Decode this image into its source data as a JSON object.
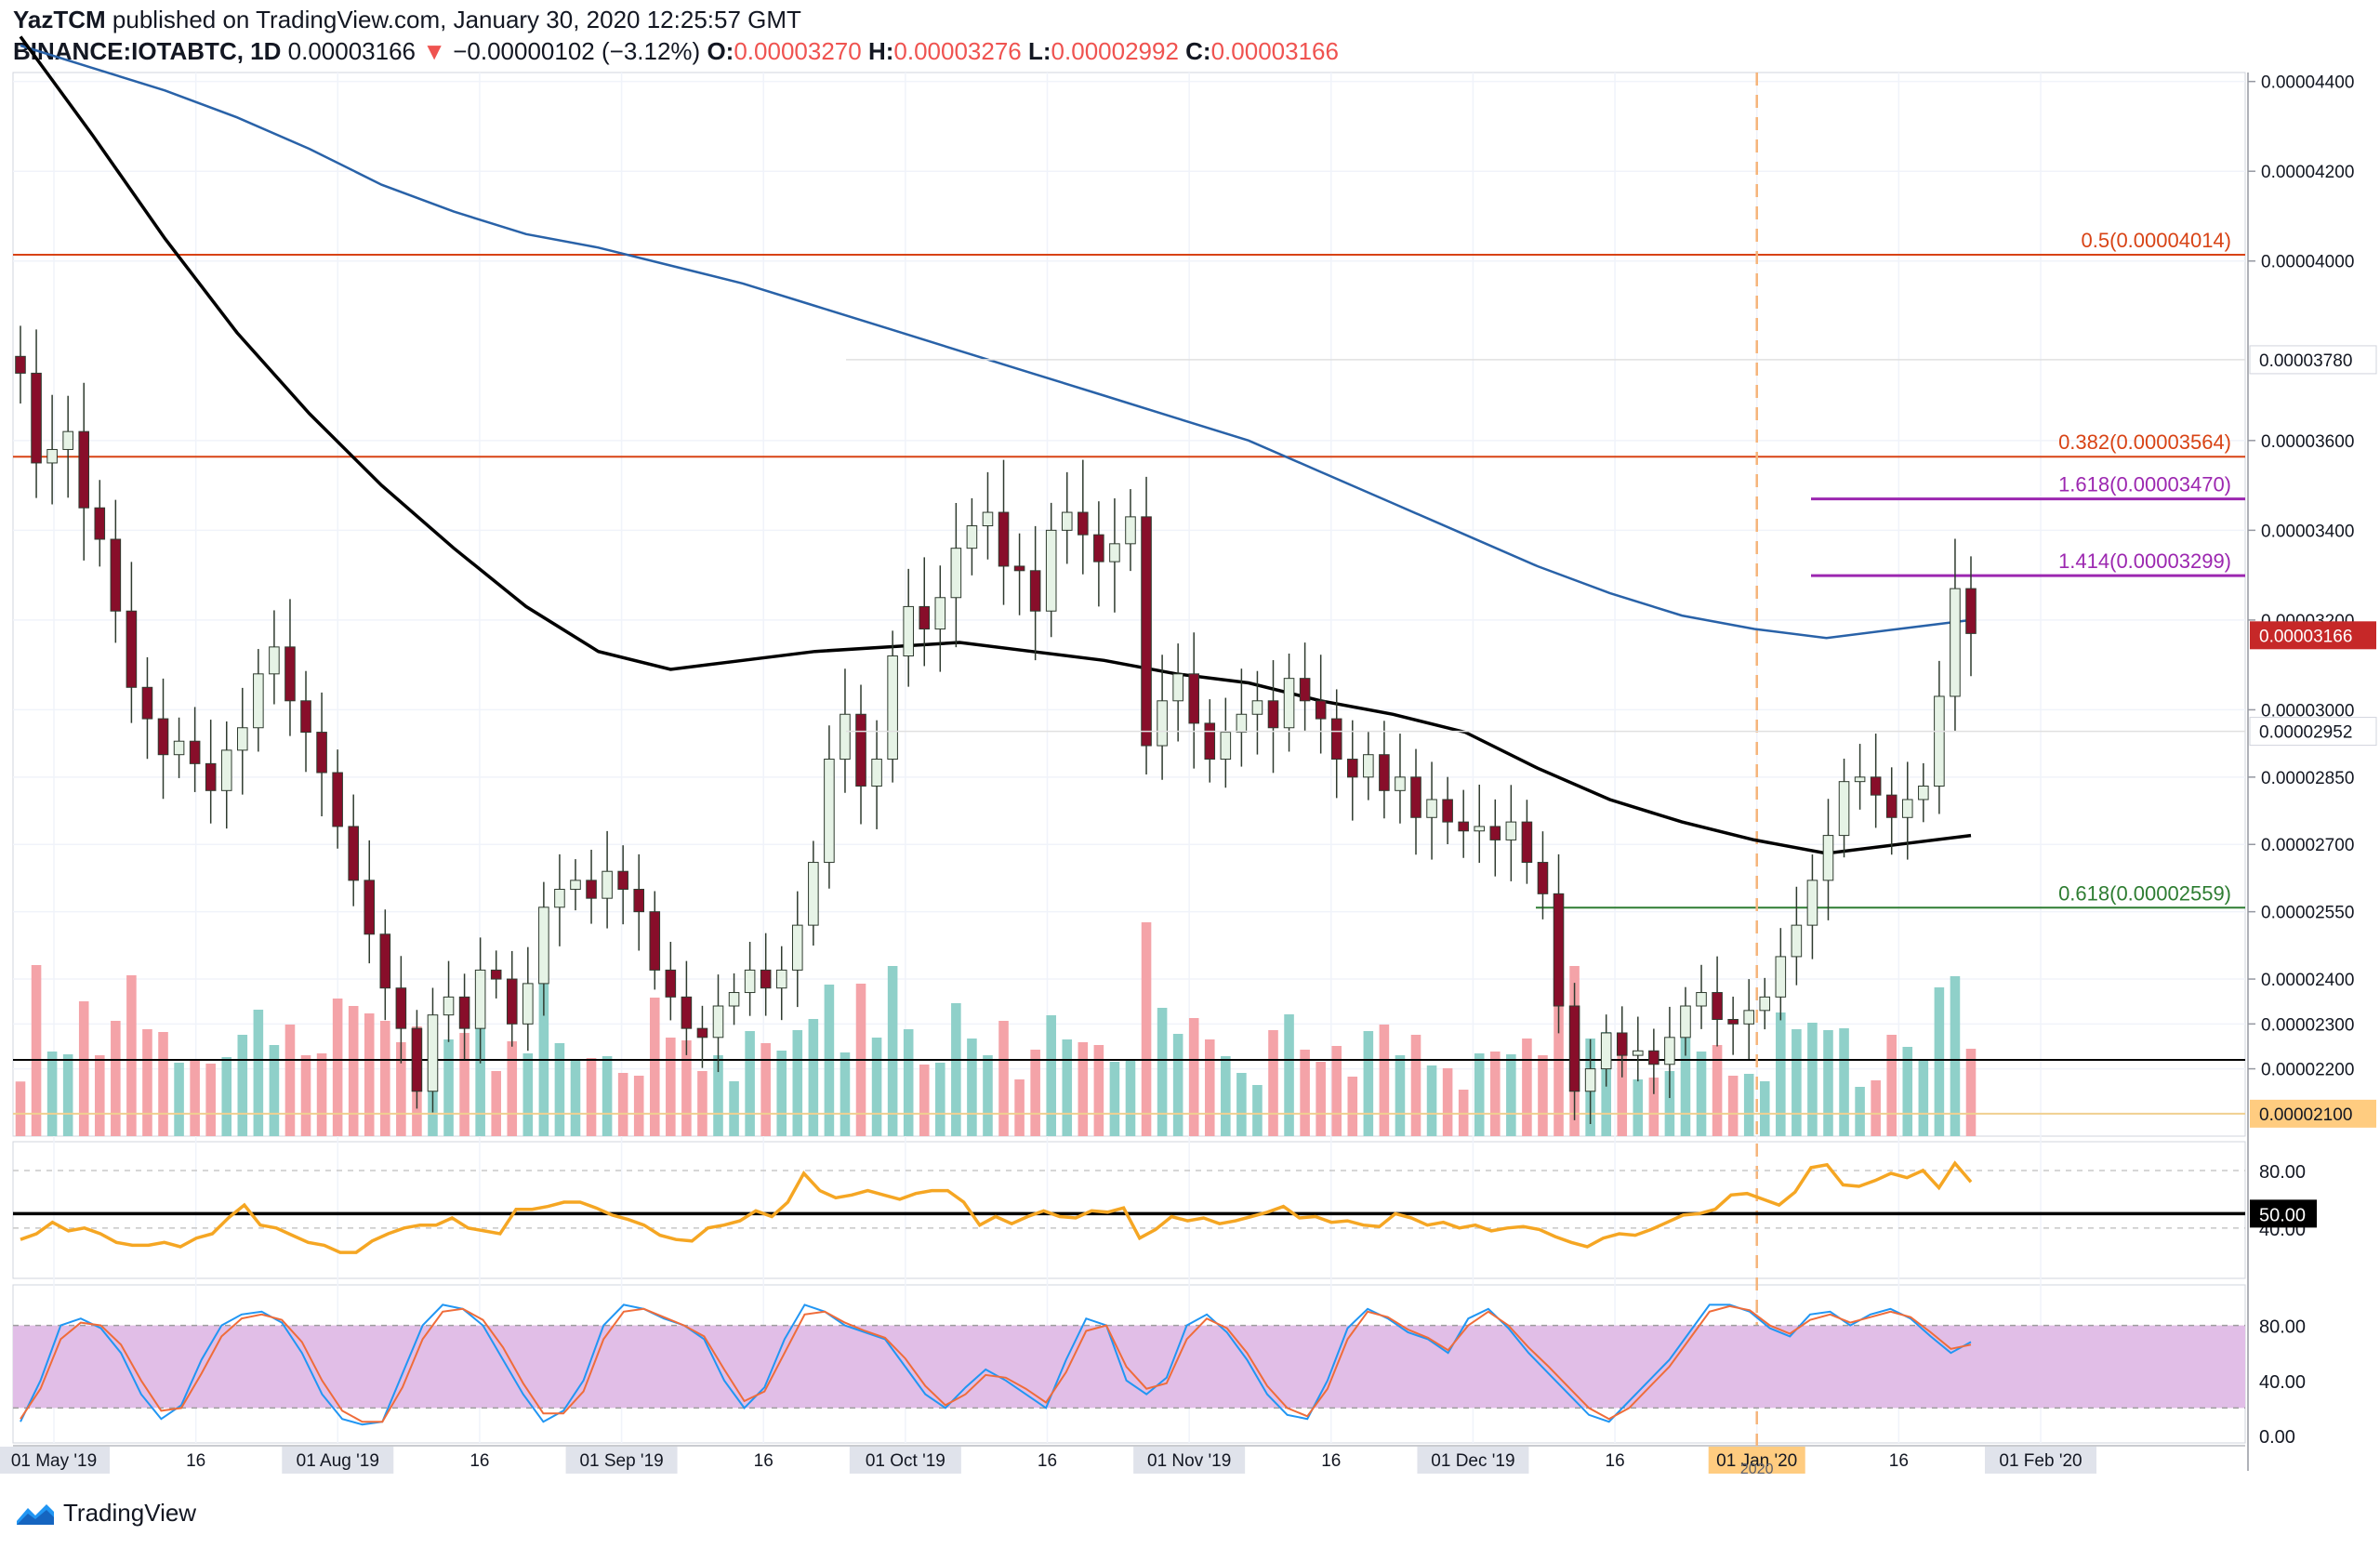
{
  "header": {
    "author": "YazTCM",
    "published_text": "published on TradingView.com, January 30, 2020 12:25:57 GMT",
    "symbol": "BINANCE:IOTABTC, 1D",
    "last": "0.00003166",
    "arrow": "▼",
    "change": "−0.00000102 (−3.12%)",
    "o_label": "O:",
    "o_value": "0.00003270",
    "h_label": "H:",
    "h_value": "0.00003276",
    "l_label": "L:",
    "l_value": "0.00002992",
    "c_label": "C:",
    "c_value": "0.00003166"
  },
  "brand": {
    "label": "TradingView",
    "icon": "tradingview-logo-icon"
  },
  "colors": {
    "up": "#26a69a",
    "down": "#ef5350",
    "up_body": "#e6f3e6",
    "down_body": "#880e2a",
    "ma200": "#2962a8",
    "ma100": "#000000",
    "fib_red": "#d84315",
    "fib_purple": "#9c27b0",
    "fib_green": "#2e7d32",
    "rsi": "#f5a623",
    "stoch_k": "#2196f3",
    "stoch_d": "#ef6c3a",
    "stoch_band": "#e1bee7",
    "price_tag": "#c62828",
    "support_tag": "#ffcc80"
  },
  "chart_data": {
    "type": "candlestick",
    "price_axis": {
      "min": 2.05e-05,
      "max": 4.42e-05,
      "ticks": [
        "0.00004400",
        "0.00004200",
        "0.00004000",
        "0.00003600",
        "0.00003400",
        "0.00003200",
        "0.00003000",
        "0.00002850",
        "0.00002700",
        "0.00002550",
        "0.00002400",
        "0.00002300",
        "0.00002200"
      ]
    },
    "time_axis": {
      "labels": [
        "01 May '19",
        "16",
        "01 Aug '19",
        "16",
        "01 Sep '19",
        "16",
        "01 Oct '19",
        "16",
        "01 Nov '19",
        "16",
        "01 Dec '19",
        "16",
        "01 Jan '20",
        "16",
        "01 Feb '20"
      ],
      "highlight": "2020",
      "cursor_date": "01 Jan '20"
    },
    "levels": [
      {
        "label": "0.5(0.00004014)",
        "value": 4.014e-05,
        "color": "fib_red"
      },
      {
        "label": "0.382(0.00003564)",
        "value": 3.564e-05,
        "color": "fib_red"
      },
      {
        "label": "1.618(0.00003470)",
        "value": 3.47e-05,
        "color": "fib_purple"
      },
      {
        "label": "1.414(0.00003299)",
        "value": 3.299e-05,
        "color": "fib_purple"
      },
      {
        "label": "0.618(0.00002559)",
        "value": 2.559e-05,
        "color": "fib_green"
      }
    ],
    "axis_tags": [
      {
        "label": "0.00003780",
        "value": 3.78e-05,
        "style": "grey"
      },
      {
        "label": "0.00003166",
        "value": 3.166e-05,
        "style": "red"
      },
      {
        "label": "0.00002952",
        "value": 2.952e-05,
        "style": "grey"
      },
      {
        "label": "0.00002100",
        "value": 2.1e-05,
        "style": "orange"
      }
    ],
    "support_lines": [
      {
        "value": 2.22e-05,
        "color": "#000000"
      },
      {
        "value": 2.1e-05,
        "color": "#f0d090"
      }
    ],
    "candles_close": [
      3.75e-05,
      3.55e-05,
      3.58e-05,
      3.62e-05,
      3.45e-05,
      3.38e-05,
      3.22e-05,
      3.05e-05,
      2.98e-05,
      2.9e-05,
      2.93e-05,
      2.88e-05,
      2.82e-05,
      2.91e-05,
      2.96e-05,
      3.08e-05,
      3.14e-05,
      3.02e-05,
      2.95e-05,
      2.86e-05,
      2.74e-05,
      2.62e-05,
      2.5e-05,
      2.38e-05,
      2.29e-05,
      2.15e-05,
      2.32e-05,
      2.36e-05,
      2.29e-05,
      2.42e-05,
      2.4e-05,
      2.3e-05,
      2.39e-05,
      2.56e-05,
      2.6e-05,
      2.62e-05,
      2.58e-05,
      2.64e-05,
      2.6e-05,
      2.55e-05,
      2.42e-05,
      2.36e-05,
      2.29e-05,
      2.27e-05,
      2.34e-05,
      2.37e-05,
      2.42e-05,
      2.38e-05,
      2.42e-05,
      2.52e-05,
      2.66e-05,
      2.89e-05,
      2.99e-05,
      2.83e-05,
      2.89e-05,
      3.12e-05,
      3.23e-05,
      3.18e-05,
      3.25e-05,
      3.36e-05,
      3.41e-05,
      3.44e-05,
      3.32e-05,
      3.31e-05,
      3.22e-05,
      3.4e-05,
      3.44e-05,
      3.39e-05,
      3.33e-05,
      3.37e-05,
      3.43e-05,
      2.92e-05,
      3.02e-05,
      3.08e-05,
      2.97e-05,
      2.89e-05,
      2.95e-05,
      2.99e-05,
      3.02e-05,
      2.96e-05,
      3.07e-05,
      3.02e-05,
      2.98e-05,
      2.89e-05,
      2.85e-05,
      2.9e-05,
      2.82e-05,
      2.85e-05,
      2.76e-05,
      2.8e-05,
      2.75e-05,
      2.73e-05,
      2.74e-05,
      2.71e-05,
      2.75e-05,
      2.66e-05,
      2.59e-05,
      2.34e-05,
      2.15e-05,
      2.2e-05,
      2.28e-05,
      2.23e-05,
      2.24e-05,
      2.21e-05,
      2.27e-05,
      2.34e-05,
      2.37e-05,
      2.31e-05,
      2.3e-05,
      2.33e-05,
      2.36e-05,
      2.45e-05,
      2.52e-05,
      2.62e-05,
      2.72e-05,
      2.84e-05,
      2.85e-05,
      2.81e-05,
      2.76e-05,
      2.8e-05,
      2.83e-05,
      3.03e-05,
      3.27e-05,
      3.17e-05
    ],
    "ma200": [
      4.48e-05,
      4.43e-05,
      4.38e-05,
      4.32e-05,
      4.25e-05,
      4.17e-05,
      4.11e-05,
      4.06e-05,
      4.03e-05,
      3.99e-05,
      3.95e-05,
      3.9e-05,
      3.85e-05,
      3.8e-05,
      3.75e-05,
      3.7e-05,
      3.65e-05,
      3.6e-05,
      3.53e-05,
      3.46e-05,
      3.39e-05,
      3.32e-05,
      3.26e-05,
      3.21e-05,
      3.18e-05,
      3.16e-05,
      3.18e-05,
      3.2e-05
    ],
    "ma100": [
      4.5e-05,
      4.28e-05,
      4.05e-05,
      3.84e-05,
      3.66e-05,
      3.5e-05,
      3.36e-05,
      3.23e-05,
      3.13e-05,
      3.09e-05,
      3.11e-05,
      3.13e-05,
      3.14e-05,
      3.15e-05,
      3.13e-05,
      3.11e-05,
      3.08e-05,
      3.06e-05,
      3.02e-05,
      2.99e-05,
      2.95e-05,
      2.87e-05,
      2.8e-05,
      2.75e-05,
      2.71e-05,
      2.68e-05,
      2.7e-05,
      2.72e-05
    ],
    "rsi": {
      "ticks": [
        "80.00",
        "50.00",
        "40.00"
      ],
      "level_tag": "50.00",
      "values": [
        32,
        36,
        44,
        38,
        40,
        36,
        30,
        28,
        28,
        30,
        27,
        33,
        36,
        47,
        56,
        42,
        40,
        35,
        30,
        28,
        23,
        23,
        31,
        36,
        40,
        42,
        42,
        47,
        40,
        38,
        36,
        53,
        53,
        55,
        58,
        58,
        54,
        49,
        46,
        42,
        35,
        32,
        31,
        40,
        42,
        45,
        52,
        48,
        58,
        78,
        66,
        61,
        63,
        66,
        63,
        60,
        64,
        66,
        66,
        58,
        42,
        48,
        43,
        48,
        52,
        48,
        47,
        52,
        51,
        54,
        33,
        39,
        48,
        45,
        47,
        43,
        45,
        48,
        51,
        55,
        47,
        48,
        44,
        45,
        42,
        41,
        50,
        47,
        42,
        44,
        40,
        42,
        38,
        40,
        41,
        39,
        34,
        30,
        27,
        33,
        36,
        35,
        39,
        44,
        49,
        50,
        53,
        63,
        64,
        60,
        56,
        65,
        82,
        84,
        70,
        69,
        73,
        78,
        75,
        80,
        68,
        85,
        72
      ]
    },
    "stoch": {
      "ticks": [
        "80.00",
        "40.00",
        "0.00"
      ],
      "band": [
        20,
        80
      ],
      "k": [
        10,
        40,
        80,
        85,
        78,
        60,
        30,
        12,
        22,
        55,
        80,
        88,
        90,
        82,
        60,
        30,
        12,
        8,
        10,
        45,
        80,
        95,
        92,
        80,
        55,
        30,
        10,
        18,
        40,
        80,
        95,
        92,
        85,
        80,
        70,
        40,
        20,
        35,
        70,
        95,
        90,
        80,
        75,
        70,
        50,
        30,
        20,
        35,
        48,
        40,
        30,
        20,
        55,
        85,
        80,
        40,
        30,
        42,
        80,
        88,
        75,
        55,
        30,
        15,
        12,
        40,
        78,
        92,
        85,
        75,
        70,
        60,
        85,
        92,
        78,
        60,
        45,
        30,
        15,
        10,
        25,
        40,
        55,
        75,
        95,
        95,
        90,
        78,
        72,
        88,
        90,
        80,
        88,
        92,
        85,
        72,
        60,
        68
      ],
      "d": [
        12,
        34,
        70,
        82,
        80,
        66,
        40,
        18,
        20,
        45,
        72,
        85,
        88,
        84,
        68,
        40,
        18,
        10,
        10,
        35,
        70,
        90,
        92,
        84,
        64,
        38,
        16,
        16,
        32,
        70,
        90,
        92,
        86,
        80,
        72,
        48,
        25,
        32,
        60,
        88,
        90,
        82,
        76,
        71,
        56,
        36,
        22,
        30,
        44,
        42,
        34,
        24,
        46,
        76,
        80,
        50,
        34,
        38,
        70,
        85,
        78,
        60,
        36,
        20,
        14,
        34,
        70,
        90,
        86,
        77,
        71,
        62,
        80,
        90,
        80,
        64,
        50,
        35,
        20,
        12,
        20,
        35,
        50,
        70,
        90,
        94,
        91,
        80,
        74,
        84,
        88,
        82,
        86,
        90,
        86,
        75,
        63,
        66
      ]
    }
  }
}
